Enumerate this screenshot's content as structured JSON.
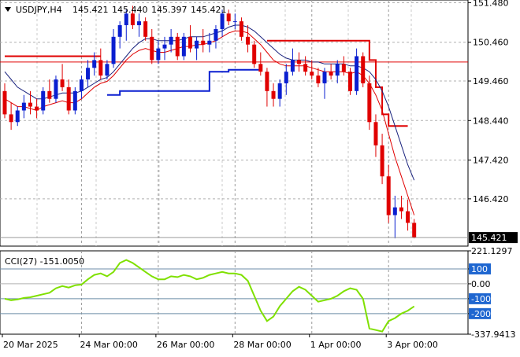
{
  "header": {
    "symbol": "USDJPY,H4",
    "open": "145.421",
    "high": "145.440",
    "low": "145.397",
    "close": "145.421"
  },
  "price_axis": {
    "ticks": [
      "151.480",
      "150.460",
      "149.460",
      "148.440",
      "147.420",
      "146.420"
    ],
    "current_price": "145.421",
    "current_price_color": "#000000"
  },
  "cci_panel": {
    "title": "CCI(27) -151.0050",
    "ticks": [
      "221.1297",
      "100",
      "0.00",
      "-100",
      "-200",
      "-337.9413"
    ],
    "highlight_labels": [
      "100",
      "-100",
      "-200"
    ],
    "highlight_color": "#1e66d0",
    "line_color": "#7fe000"
  },
  "time_axis": {
    "labels": [
      "20 Mar 2025",
      "24 Mar 00:00",
      "26 Mar 00:00",
      "28 Mar 00:00",
      "1 Apr 00:00",
      "3 Apr 00:00"
    ]
  },
  "chart_data": {
    "type": "candlestick",
    "ylim": [
      145.2,
      151.55
    ],
    "colors": {
      "bull": "#0a1fd0",
      "bear": "#e00000",
      "fast_ma": "#e00000",
      "slow_ma": "#1a237e",
      "channel_top": "#e00000",
      "channel_bottom": "#0a1fd0",
      "hline": "#e00000"
    },
    "candles": [
      [
        149.2,
        149.4,
        148.5,
        148.6
      ],
      [
        148.6,
        148.9,
        148.2,
        148.4
      ],
      [
        148.4,
        148.8,
        148.3,
        148.7
      ],
      [
        148.7,
        149.1,
        148.5,
        148.9
      ],
      [
        148.9,
        149.2,
        148.6,
        148.8
      ],
      [
        148.8,
        149.0,
        148.5,
        148.7
      ],
      [
        148.7,
        149.3,
        148.6,
        149.2
      ],
      [
        149.2,
        149.5,
        148.9,
        149.0
      ],
      [
        149.0,
        149.6,
        148.9,
        149.5
      ],
      [
        149.5,
        149.9,
        149.2,
        149.3
      ],
      [
        149.3,
        149.5,
        148.6,
        148.7
      ],
      [
        148.7,
        149.3,
        148.6,
        149.2
      ],
      [
        149.2,
        149.6,
        149.0,
        149.5
      ],
      [
        149.5,
        150.0,
        149.3,
        149.8
      ],
      [
        149.8,
        150.2,
        149.6,
        150.0
      ],
      [
        150.0,
        150.3,
        149.5,
        149.6
      ],
      [
        149.6,
        150.0,
        149.5,
        149.9
      ],
      [
        149.9,
        150.8,
        149.8,
        150.6
      ],
      [
        150.6,
        151.0,
        150.3,
        150.9
      ],
      [
        150.9,
        151.3,
        150.5,
        151.2
      ],
      [
        151.2,
        151.4,
        150.8,
        150.9
      ],
      [
        150.9,
        151.2,
        150.6,
        151.0
      ],
      [
        151.0,
        151.1,
        150.5,
        150.6
      ],
      [
        150.6,
        150.8,
        149.9,
        150.0
      ],
      [
        150.0,
        150.5,
        149.9,
        150.3
      ],
      [
        150.3,
        150.6,
        150.0,
        150.4
      ],
      [
        150.4,
        150.8,
        150.2,
        150.6
      ],
      [
        150.6,
        150.7,
        150.0,
        150.1
      ],
      [
        150.1,
        150.7,
        150.0,
        150.6
      ],
      [
        150.6,
        150.9,
        150.2,
        150.3
      ],
      [
        150.3,
        150.6,
        150.0,
        150.5
      ],
      [
        150.5,
        150.8,
        150.2,
        150.4
      ],
      [
        150.4,
        150.7,
        150.2,
        150.5
      ],
      [
        150.5,
        150.9,
        150.3,
        150.8
      ],
      [
        150.8,
        151.3,
        150.6,
        151.2
      ],
      [
        151.2,
        151.3,
        150.9,
        151.0
      ],
      [
        151.0,
        151.2,
        150.8,
        151.0
      ],
      [
        151.0,
        151.1,
        150.5,
        150.6
      ],
      [
        150.6,
        150.9,
        150.2,
        150.4
      ],
      [
        150.4,
        150.5,
        149.8,
        149.9
      ],
      [
        149.9,
        150.2,
        149.6,
        149.7
      ],
      [
        149.7,
        149.8,
        148.8,
        149.2
      ],
      [
        149.2,
        149.4,
        148.8,
        149.0
      ],
      [
        149.0,
        149.5,
        148.8,
        149.4
      ],
      [
        149.4,
        149.9,
        149.1,
        149.7
      ],
      [
        149.7,
        150.3,
        149.6,
        150.0
      ],
      [
        150.0,
        150.2,
        149.7,
        149.9
      ],
      [
        149.9,
        150.1,
        149.6,
        149.7
      ],
      [
        149.7,
        150.0,
        149.5,
        149.6
      ],
      [
        149.6,
        149.8,
        149.3,
        149.4
      ],
      [
        149.4,
        149.8,
        149.0,
        149.7
      ],
      [
        149.7,
        149.9,
        149.5,
        149.6
      ],
      [
        149.6,
        150.0,
        149.4,
        149.9
      ],
      [
        149.9,
        150.1,
        149.6,
        149.7
      ],
      [
        149.7,
        149.8,
        149.1,
        149.2
      ],
      [
        149.2,
        150.3,
        149.1,
        150.1
      ],
      [
        150.1,
        150.2,
        149.3,
        149.4
      ],
      [
        149.4,
        149.6,
        148.2,
        148.4
      ],
      [
        148.4,
        148.6,
        147.5,
        147.8
      ],
      [
        147.8,
        148.1,
        146.8,
        147.0
      ],
      [
        147.0,
        147.3,
        145.8,
        146.0
      ],
      [
        146.0,
        146.5,
        145.4,
        146.2
      ],
      [
        146.2,
        146.5,
        145.9,
        146.1
      ],
      [
        146.1,
        146.4,
        145.6,
        145.8
      ],
      [
        145.8,
        145.9,
        145.4,
        145.42
      ]
    ],
    "fast_ma": [
      149.0,
      148.9,
      148.8,
      148.8,
      148.75,
      148.7,
      148.8,
      148.85,
      148.9,
      148.95,
      148.9,
      148.9,
      149.0,
      149.15,
      149.3,
      149.4,
      149.45,
      149.6,
      149.8,
      150.0,
      150.15,
      150.25,
      150.3,
      150.25,
      150.2,
      150.2,
      150.25,
      150.3,
      150.35,
      150.35,
      150.4,
      150.4,
      150.45,
      150.5,
      150.6,
      150.7,
      150.75,
      150.75,
      150.7,
      150.55,
      150.4,
      150.2,
      150.0,
      149.9,
      149.85,
      149.85,
      149.85,
      149.85,
      149.8,
      149.75,
      149.7,
      149.7,
      149.7,
      149.7,
      149.65,
      149.7,
      149.6,
      149.4,
      149.1,
      148.7,
      148.1,
      147.5,
      147.0,
      146.5,
      146.0
    ],
    "slow_ma": [
      149.7,
      149.5,
      149.3,
      149.2,
      149.1,
      149.0,
      149.0,
      149.05,
      149.1,
      149.15,
      149.15,
      149.15,
      149.2,
      149.3,
      149.4,
      149.5,
      149.55,
      149.7,
      149.9,
      150.1,
      150.3,
      150.45,
      150.55,
      150.55,
      150.5,
      150.5,
      150.5,
      150.5,
      150.55,
      150.6,
      150.6,
      150.6,
      150.65,
      150.7,
      150.75,
      150.85,
      150.9,
      150.9,
      150.85,
      150.75,
      150.6,
      150.45,
      150.3,
      150.15,
      150.05,
      150.0,
      150.0,
      150.0,
      149.95,
      149.95,
      149.9,
      149.9,
      149.9,
      149.9,
      149.85,
      149.85,
      149.8,
      149.7,
      149.5,
      149.2,
      148.8,
      148.3,
      147.8,
      147.3,
      146.9
    ],
    "channel_top": [
      150.1,
      150.1,
      150.1,
      150.1,
      150.1,
      150.1,
      150.1,
      150.1,
      150.1,
      150.1,
      150.1,
      150.1,
      150.1,
      150.1,
      150.1,
      150.1,
      null,
      null,
      null,
      null,
      null,
      null,
      null,
      null,
      null,
      null,
      null,
      null,
      null,
      null,
      null,
      null,
      null,
      null,
      null,
      null,
      null,
      null,
      null,
      null,
      null,
      150.5,
      150.5,
      150.5,
      150.5,
      150.5,
      150.5,
      150.5,
      150.5,
      150.5,
      150.5,
      150.5,
      150.5,
      150.5,
      150.5,
      150.5,
      150.5,
      150.0,
      149.3,
      148.6,
      148.3,
      148.3,
      148.3,
      148.3,
      null
    ],
    "channel_bottom": [
      null,
      null,
      null,
      null,
      null,
      null,
      null,
      null,
      null,
      null,
      null,
      null,
      null,
      null,
      null,
      null,
      149.1,
      149.1,
      149.2,
      149.2,
      149.2,
      149.2,
      149.2,
      149.2,
      149.2,
      149.2,
      149.2,
      149.2,
      149.2,
      149.2,
      149.2,
      149.2,
      149.7,
      149.7,
      149.7,
      149.75,
      149.75,
      149.75,
      149.75,
      149.75,
      149.75,
      null,
      null,
      null,
      null,
      null,
      null,
      null,
      null,
      null,
      null,
      null,
      null,
      null,
      null,
      null,
      null,
      null,
      null,
      null,
      null,
      null,
      null,
      null,
      null
    ],
    "hline": 149.95,
    "cci": [
      -100,
      -110,
      -105,
      -95,
      -90,
      -80,
      -70,
      -60,
      -30,
      -15,
      -25,
      -10,
      -5,
      30,
      60,
      70,
      50,
      80,
      140,
      160,
      140,
      110,
      80,
      50,
      30,
      30,
      50,
      45,
      60,
      50,
      30,
      40,
      60,
      70,
      80,
      70,
      70,
      60,
      20,
      -80,
      -180,
      -250,
      -220,
      -150,
      -100,
      -50,
      -20,
      -40,
      -80,
      -120,
      -110,
      -100,
      -80,
      -50,
      -30,
      -40,
      -100,
      -300,
      -310,
      -320,
      -250,
      -230,
      -200,
      -180,
      -151
    ],
    "cci_ylim": [
      -337.9413,
      221.1297
    ]
  }
}
